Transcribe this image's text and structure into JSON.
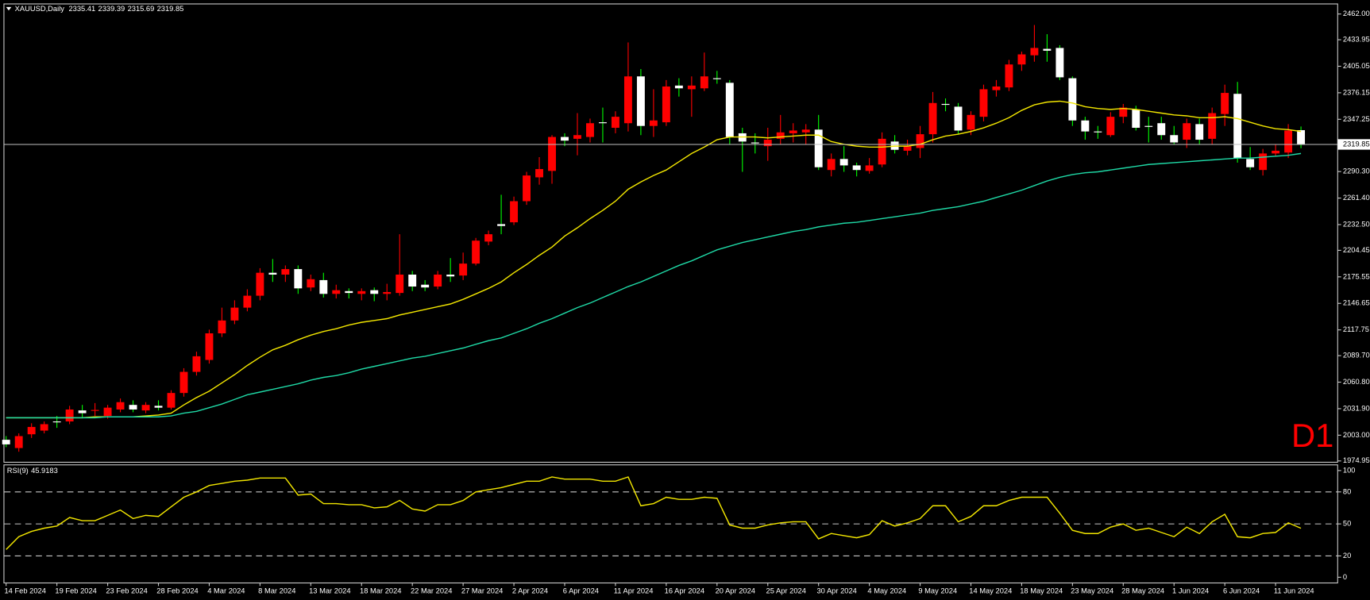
{
  "chart_data": [
    {
      "type": "candlestick",
      "title": "XAUUSD,Daily",
      "annotation": "D1",
      "annotation_color": "#ff0000",
      "up_color": "#ff0000",
      "down_color": "#ffffff",
      "down_wick_color": "#00ff00",
      "price_line_color": "#c0c0c0",
      "ylim": [
        1974.95,
        2462.0
      ],
      "yticks": [
        {
          "value": 2462.0,
          "label": "2462.00"
        },
        2433.95,
        2405.05,
        2376.15,
        2347.25,
        {
          "value": 2290.3,
          "label": "2290.30"
        },
        {
          "value": 2261.4,
          "label": "2261.40"
        },
        {
          "value": 2232.5,
          "label": "2232.50"
        },
        2204.45,
        2175.55,
        2146.65,
        2117.75,
        {
          "value": 2089.7,
          "label": "2089.70"
        },
        {
          "value": 2060.8,
          "label": "2060.80"
        },
        {
          "value": 2031.9,
          "label": "2031.90"
        },
        {
          "value": 2003.0,
          "label": "2003.00"
        },
        1974.95
      ],
      "open": [
        1998,
        1989,
        2004,
        2008,
        2018,
        2018,
        2030,
        2030,
        2024,
        2031,
        2036,
        2030,
        2035,
        2033,
        2049,
        2072,
        2085,
        2114,
        2128,
        2142,
        2155,
        2180,
        2178,
        2184,
        2164,
        2172,
        2157,
        2160,
        2157,
        2161,
        2157,
        2158,
        2178,
        2167,
        2165,
        2178,
        2177,
        2190,
        2214,
        2233,
        2235,
        2258,
        2284,
        2291,
        2328,
        2326,
        2328,
        2344,
        2338,
        2343,
        2394,
        2340,
        2344,
        2384,
        2380,
        2381,
        2392,
        2387,
        2332,
        2322,
        2318,
        2326,
        2332,
        2333,
        2336,
        2292,
        2304,
        2297,
        2291,
        2298,
        2323,
        2313,
        2316,
        2331,
        2364,
        2361,
        2336,
        2350,
        2379,
        2382,
        2407,
        2417,
        2424,
        2425,
        2392,
        2346,
        2334,
        2330,
        2350,
        2358,
        2340,
        2343,
        2330,
        2325,
        2342,
        2326,
        2353,
        2375,
        2304,
        2292,
        2310,
        2311,
        2335.41
      ],
      "high": [
        2002,
        2005,
        2016,
        2018,
        2024,
        2035,
        2036,
        2038,
        2036,
        2043,
        2041,
        2039,
        2041,
        2052,
        2076,
        2094,
        2118,
        2142,
        2150,
        2162,
        2185,
        2195,
        2188,
        2188,
        2178,
        2180,
        2167,
        2163,
        2163,
        2164,
        2168,
        2222,
        2182,
        2172,
        2182,
        2196,
        2202,
        2218,
        2226,
        2265,
        2263,
        2290,
        2306,
        2330,
        2332,
        2354,
        2348,
        2360,
        2356,
        2431,
        2402,
        2380,
        2390,
        2392,
        2394,
        2420,
        2400,
        2390,
        2338,
        2332,
        2338,
        2352,
        2343,
        2342,
        2352,
        2310,
        2318,
        2300,
        2305,
        2333,
        2330,
        2325,
        2340,
        2377,
        2370,
        2365,
        2356,
        2385,
        2390,
        2412,
        2421,
        2450,
        2440,
        2428,
        2394,
        2350,
        2340,
        2355,
        2364,
        2362,
        2350,
        2350,
        2340,
        2348,
        2348,
        2360,
        2385,
        2388,
        2317,
        2315,
        2320,
        2342,
        2339.39
      ],
      "low": [
        1990,
        1985,
        2000,
        2005,
        2011,
        2015,
        2022,
        2024,
        2021,
        2028,
        2028,
        2027,
        2030,
        2031,
        2045,
        2068,
        2081,
        2110,
        2124,
        2138,
        2150,
        2170,
        2170,
        2157,
        2160,
        2153,
        2152,
        2152,
        2150,
        2149,
        2150,
        2155,
        2160,
        2160,
        2162,
        2170,
        2172,
        2188,
        2210,
        2222,
        2232,
        2254,
        2276,
        2277,
        2318,
        2308,
        2322,
        2322,
        2332,
        2334,
        2330,
        2328,
        2340,
        2372,
        2350,
        2378,
        2386,
        2320,
        2290,
        2310,
        2302,
        2320,
        2322,
        2320,
        2292,
        2285,
        2290,
        2285,
        2288,
        2295,
        2310,
        2308,
        2305,
        2322,
        2356,
        2331,
        2330,
        2345,
        2372,
        2378,
        2400,
        2410,
        2410,
        2390,
        2340,
        2325,
        2326,
        2328,
        2343,
        2335,
        2322,
        2325,
        2320,
        2316,
        2320,
        2320,
        2340,
        2300,
        2292,
        2286,
        2307,
        2305,
        2315.69
      ],
      "close": [
        1993,
        2002,
        2012,
        2015,
        2017,
        2031,
        2027,
        2030.5,
        2033,
        2039,
        2031,
        2036,
        2033,
        2049,
        2072,
        2089,
        2114,
        2128,
        2142,
        2155,
        2180,
        2178,
        2184,
        2163,
        2173,
        2157,
        2161,
        2158,
        2160,
        2157,
        2159,
        2178,
        2165,
        2164,
        2178,
        2176,
        2190,
        2215,
        2222,
        2231,
        2258,
        2286,
        2293,
        2328,
        2324,
        2330,
        2343,
        2343,
        2350,
        2394,
        2340,
        2346,
        2383,
        2381,
        2384,
        2394,
        2391,
        2328,
        2323,
        2321,
        2325,
        2333,
        2335,
        2336,
        2295,
        2304,
        2297,
        2292,
        2297,
        2326,
        2314,
        2318,
        2331,
        2365,
        2363,
        2335,
        2352,
        2380,
        2383,
        2407,
        2418,
        2425,
        2422,
        2393,
        2346,
        2334,
        2333,
        2350,
        2360,
        2338,
        2339,
        2330,
        2322,
        2343,
        2325,
        2354,
        2376,
        2305,
        2295,
        2310,
        2313,
        2335,
        2319.85
      ],
      "lines": [
        {
          "color": "#f2e600",
          "values": [
            2022,
            2022,
            2022,
            2022,
            2022,
            2022,
            2022,
            2023,
            2023,
            2023,
            2023,
            2024,
            2025,
            2027,
            2036,
            2044,
            2051,
            2060,
            2069,
            2079,
            2088,
            2096,
            2101,
            2107,
            2112,
            2116,
            2119,
            2123,
            2126,
            2128,
            2130,
            2134,
            2137,
            2140,
            2143,
            2146,
            2151,
            2157,
            2163,
            2170,
            2180,
            2189,
            2199,
            2208,
            2220,
            2229,
            2239,
            2248,
            2258,
            2271,
            2279,
            2286,
            2292,
            2301,
            2310,
            2317,
            2325,
            2328,
            2328,
            2328,
            2327,
            2328,
            2329,
            2330,
            2330,
            2323,
            2320,
            2318,
            2317,
            2317,
            2318,
            2318,
            2320,
            2325,
            2329,
            2331,
            2334,
            2338,
            2343,
            2349,
            2357,
            2363,
            2366,
            2367,
            2365,
            2361,
            2359,
            2358,
            2359,
            2358,
            2356,
            2354,
            2352,
            2351,
            2349,
            2349,
            2350,
            2348,
            2344,
            2340,
            2337,
            2336,
            2334
          ]
        },
        {
          "color": "#1fd9a6",
          "values": [
            2022,
            2022,
            2022,
            2022,
            2022,
            2022,
            2022,
            2022,
            2023,
            2023,
            2023,
            2023,
            2023,
            2024,
            2027,
            2029,
            2033,
            2037,
            2042,
            2047,
            2050,
            2053,
            2056,
            2059,
            2063,
            2066,
            2068,
            2071,
            2075,
            2078,
            2081,
            2084,
            2087,
            2089,
            2092,
            2095,
            2098,
            2102,
            2106,
            2109,
            2114,
            2119,
            2125,
            2130,
            2136,
            2142,
            2147,
            2153,
            2159,
            2165,
            2170,
            2176,
            2182,
            2188,
            2193,
            2199,
            2205,
            2209,
            2213,
            2216,
            2219,
            2222,
            2225,
            2227,
            2230,
            2232,
            2234,
            2235,
            2237,
            2239,
            2241,
            2243,
            2245,
            2248,
            2250,
            2252,
            2255,
            2258,
            2262,
            2266,
            2270,
            2275,
            2280,
            2284,
            2287,
            2289,
            2290,
            2292,
            2294,
            2296,
            2298,
            2299,
            2300,
            2301,
            2302,
            2303,
            2304,
            2305,
            2305,
            2306,
            2307,
            2308,
            2310
          ]
        }
      ]
    },
    {
      "type": "line",
      "title": "RSI(9)",
      "color": "#f2e600",
      "ylim": [
        0,
        100
      ],
      "yticks": [
        100,
        80,
        50,
        20,
        0
      ],
      "levels": [
        80,
        50,
        20
      ],
      "categories": [
        "14 Feb 2024",
        null,
        null,
        null,
        "19 Feb 2024",
        null,
        null,
        null,
        "23 Feb 2024",
        null,
        null,
        null,
        "28 Feb 2024",
        null,
        null,
        null,
        "4 Mar 2024",
        null,
        null,
        null,
        "8 Mar 2024",
        null,
        null,
        null,
        "13 Mar 2024",
        null,
        null,
        null,
        "18 Mar 2024",
        null,
        null,
        null,
        "22 Mar 2024",
        null,
        null,
        null,
        "27 Mar 2024",
        null,
        null,
        null,
        "2 Apr 2024",
        null,
        null,
        null,
        "6 Apr 2024",
        null,
        null,
        null,
        "11 Apr 2024",
        null,
        null,
        null,
        "16 Apr 2024",
        null,
        null,
        null,
        "20 Apr 2024",
        null,
        null,
        null,
        "25 Apr 2024",
        null,
        null,
        null,
        "30 Apr 2024",
        null,
        null,
        null,
        "4 May 2024",
        null,
        null,
        null,
        "9 May 2024",
        null,
        null,
        null,
        "14 May 2024",
        null,
        null,
        null,
        "18 May 2024",
        null,
        null,
        null,
        "23 May 2024",
        null,
        null,
        null,
        "28 May 2024",
        null,
        null,
        null,
        "1 Jun 2024",
        null,
        null,
        null,
        "6 Jun 2024",
        null,
        null,
        null,
        "11 Jun 2024",
        null,
        null
      ],
      "values": [
        26,
        38,
        43,
        46,
        48,
        56,
        53,
        53,
        58,
        63,
        55,
        58,
        57,
        66,
        75,
        80,
        86,
        88,
        90,
        91,
        93,
        93,
        93,
        77,
        78,
        69,
        69,
        68,
        68,
        65,
        66,
        72,
        64,
        62,
        68,
        68,
        72,
        80,
        82,
        84,
        87,
        90,
        90,
        94,
        92,
        92,
        92,
        90,
        90,
        94,
        67,
        69,
        75,
        73,
        73,
        75,
        74,
        49,
        46,
        46,
        49,
        51,
        52,
        52,
        36,
        41,
        39,
        37,
        40,
        53,
        48,
        51,
        55,
        67,
        67,
        52,
        57,
        67,
        67,
        72,
        75,
        75,
        75,
        60,
        44,
        41,
        41,
        47,
        50,
        44,
        46,
        42,
        38,
        47,
        41,
        52,
        59,
        38,
        37,
        41,
        42,
        51,
        45.9183
      ]
    }
  ]
}
